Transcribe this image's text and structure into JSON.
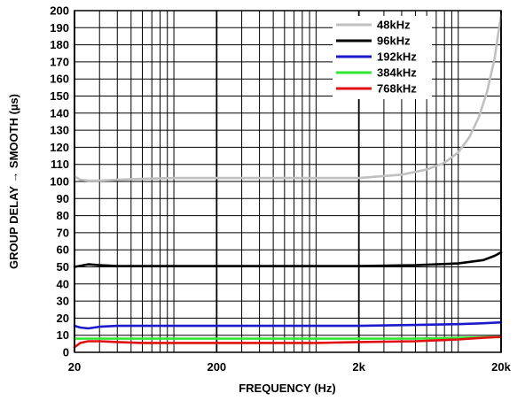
{
  "chart_data": {
    "type": "line",
    "xlabel": "FREQUENCY (Hz)",
    "ylabel": "GROUP DELAY → SMOOTH (µs)",
    "x_scale": "log",
    "xlim": [
      20,
      20000
    ],
    "ylim": [
      0,
      200
    ],
    "x_ticks": [
      {
        "value": 20,
        "label": "20"
      },
      {
        "value": 200,
        "label": "200"
      },
      {
        "value": 2000,
        "label": "2k"
      },
      {
        "value": 20000,
        "label": "20k"
      }
    ],
    "y_ticks": [
      0,
      10,
      20,
      30,
      40,
      50,
      60,
      70,
      80,
      90,
      100,
      110,
      120,
      130,
      140,
      150,
      160,
      170,
      180,
      190,
      200
    ],
    "grid": true,
    "legend_position": "top-right",
    "series": [
      {
        "name": "48kHz",
        "color": "#c0c0c0",
        "x": [
          20,
          22,
          25,
          30,
          40,
          60,
          100,
          200,
          500,
          1000,
          2000,
          4000,
          6000,
          8000,
          10000,
          12000,
          14000,
          16000,
          18000,
          19000,
          20000
        ],
        "y": [
          103,
          101,
          100.5,
          100.5,
          101,
          101.5,
          102,
          102,
          102,
          102,
          102,
          104,
          107,
          111,
          117,
          126,
          138,
          153,
          172,
          185,
          197
        ]
      },
      {
        "name": "96kHz",
        "color": "#000000",
        "x": [
          20,
          25,
          30,
          40,
          60,
          100,
          200,
          500,
          1000,
          2000,
          5000,
          10000,
          15000,
          18000,
          20000
        ],
        "y": [
          50,
          51.5,
          51,
          50.5,
          50.5,
          50.5,
          50.5,
          50.5,
          50.5,
          50.5,
          51,
          52,
          54,
          56.5,
          58.5
        ]
      },
      {
        "name": "192kHz",
        "color": "#1a1acc",
        "x": [
          20,
          22,
          25,
          30,
          40,
          60,
          100,
          200,
          500,
          1000,
          2000,
          5000,
          10000,
          15000,
          20000
        ],
        "y": [
          15.5,
          14.5,
          14,
          15,
          15.5,
          15.5,
          15.5,
          15.5,
          15.5,
          15.5,
          15.5,
          16,
          16.5,
          17,
          17.5
        ]
      },
      {
        "name": "384kHz",
        "color": "#33e833",
        "x": [
          20,
          30,
          50,
          100,
          200,
          500,
          1000,
          2000,
          5000,
          10000,
          20000
        ],
        "y": [
          8,
          8,
          8,
          8,
          8,
          8,
          8,
          8,
          8,
          8.5,
          9
        ]
      },
      {
        "name": "768kHz",
        "color": "#e01010",
        "x": [
          20,
          22,
          25,
          30,
          40,
          60,
          100,
          200,
          500,
          1000,
          2000,
          5000,
          10000,
          15000,
          20000
        ],
        "y": [
          3,
          5.5,
          6.5,
          6.5,
          6,
          5.5,
          5.5,
          5.5,
          5.5,
          5.5,
          6,
          6.5,
          7.5,
          8.5,
          9
        ]
      }
    ]
  }
}
